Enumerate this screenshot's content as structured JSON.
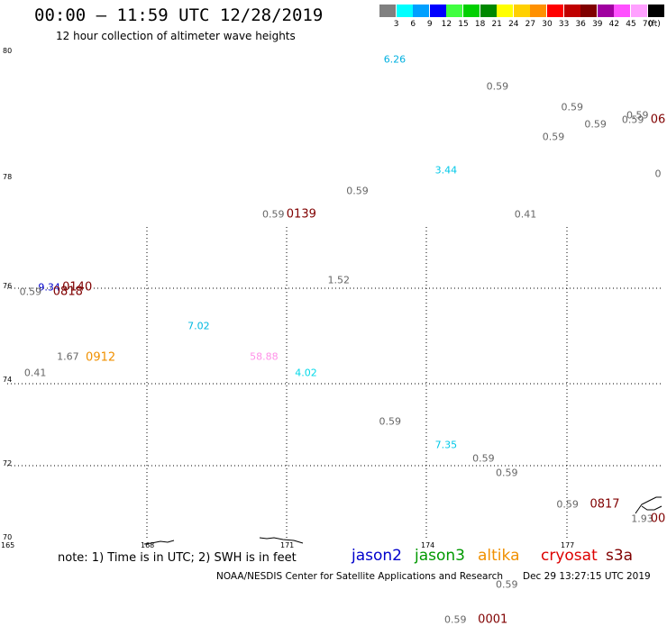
{
  "header": {
    "title": "00:00 – 11:59 UTC 12/28/2019",
    "subtitle": "12 hour collection of altimeter wave heights"
  },
  "legend": {
    "unit": "(ft)",
    "bins": [
      {
        "label": "3",
        "color": "#808080"
      },
      {
        "label": "6",
        "color": "#00ffff"
      },
      {
        "label": "9",
        "color": "#00a0ff"
      },
      {
        "label": "12",
        "color": "#0000ff"
      },
      {
        "label": "15",
        "color": "#40ff40"
      },
      {
        "label": "18",
        "color": "#00d000"
      },
      {
        "label": "21",
        "color": "#008800"
      },
      {
        "label": "24",
        "color": "#ffff00"
      },
      {
        "label": "27",
        "color": "#ffd000"
      },
      {
        "label": "30",
        "color": "#ff9000"
      },
      {
        "label": "33",
        "color": "#ff0000"
      },
      {
        "label": "36",
        "color": "#c00000"
      },
      {
        "label": "39",
        "color": "#800000"
      },
      {
        "label": "42",
        "color": "#a000a0"
      },
      {
        "label": "45",
        "color": "#ff50ff"
      },
      {
        "label": "70",
        "color": "#ffa0ff"
      },
      {
        "label": "",
        "color": "#000000"
      }
    ]
  },
  "axes": {
    "lat_labels": [
      "80",
      "78",
      "76",
      "74",
      "72",
      "70"
    ],
    "lon_labels": [
      "165",
      "168",
      "171",
      "174",
      "177"
    ]
  },
  "points": [
    {
      "text": "6.26",
      "color": "#00b0e0",
      "lon": 173.3,
      "lat": 79.87
    },
    {
      "text": "0.59",
      "color": "#666666",
      "lon": 175.5,
      "lat": 79.45
    },
    {
      "text": "0.59",
      "color": "#666666",
      "lon": 177.1,
      "lat": 79.11
    },
    {
      "text": "0.59",
      "color": "#666666",
      "lon": 178.5,
      "lat": 78.99
    },
    {
      "text": "0.59",
      "color": "#666666",
      "lon": 176.7,
      "lat": 78.65
    },
    {
      "text": "0.59",
      "color": "#666666",
      "lon": 177.6,
      "lat": 78.84
    },
    {
      "text": "0.59",
      "color": "#666666",
      "lon": 178.4,
      "lat": 78.91
    },
    {
      "text": "06",
      "color": "#800000",
      "lon": 179.8,
      "lat": 78.91,
      "big": true
    },
    {
      "text": "3.44",
      "color": "#00c8e8",
      "lon": 174.4,
      "lat": 78.12
    },
    {
      "text": "0",
      "color": "#666666",
      "lon": 180.0,
      "lat": 78.06
    },
    {
      "text": "0.59",
      "color": "#666666",
      "lon": 172.5,
      "lat": 77.75
    },
    {
      "text": "0.59",
      "color": "#666666",
      "lon": 170.7,
      "lat": 77.32
    },
    {
      "text": "0139",
      "color": "#800000",
      "lon": 171.3,
      "lat": 77.32,
      "big": true
    },
    {
      "text": "0.41",
      "color": "#666666",
      "lon": 176.1,
      "lat": 77.32
    },
    {
      "text": "1.52",
      "color": "#666666",
      "lon": 172.1,
      "lat": 76.12
    },
    {
      "text": "9.34",
      "color": "#0000cc",
      "lon": 165.9,
      "lat": 75.98
    },
    {
      "text": "0140",
      "color": "#800000",
      "lon": 166.5,
      "lat": 75.98,
      "big": true
    },
    {
      "text": "0.59",
      "color": "#666666",
      "lon": 165.5,
      "lat": 75.89
    },
    {
      "text": "0818",
      "color": "#800000",
      "lon": 166.3,
      "lat": 75.88,
      "big": true
    },
    {
      "text": "7.02",
      "color": "#00b8e0",
      "lon": 169.1,
      "lat": 75.18
    },
    {
      "text": "1.67",
      "color": "#666666",
      "lon": 166.3,
      "lat": 74.54
    },
    {
      "text": "0912",
      "color": "#f09000",
      "lon": 167.0,
      "lat": 74.53,
      "big": true
    },
    {
      "text": "58.88",
      "color": "#ff90e8",
      "lon": 170.5,
      "lat": 74.55
    },
    {
      "text": "0.41",
      "color": "#666666",
      "lon": 165.6,
      "lat": 74.21
    },
    {
      "text": "4.02",
      "color": "#00d8e8",
      "lon": 171.4,
      "lat": 74.21
    },
    {
      "text": "0.59",
      "color": "#666666",
      "lon": 173.2,
      "lat": 73.07
    },
    {
      "text": "7.35",
      "color": "#00c8e8",
      "lon": 174.4,
      "lat": 72.49
    },
    {
      "text": "0.59",
      "color": "#666666",
      "lon": 175.2,
      "lat": 72.17
    },
    {
      "text": "0.59",
      "color": "#666666",
      "lon": 175.7,
      "lat": 71.8
    },
    {
      "text": "0.59",
      "color": "#666666",
      "lon": 177.0,
      "lat": 70.95
    },
    {
      "text": "0817",
      "color": "#800000",
      "lon": 177.8,
      "lat": 70.95,
      "big": true
    },
    {
      "text": "1.93",
      "color": "#666666",
      "lon": 178.6,
      "lat": 70.54
    },
    {
      "text": "00",
      "color": "#800000",
      "lon": 179.8,
      "lat": 70.54,
      "big": true
    },
    {
      "text": "0.59",
      "color": "#666666",
      "lon": 175.7,
      "lat": 68.75
    },
    {
      "text": "0.59",
      "color": "#666666",
      "lon": 174.6,
      "lat": 67.78
    },
    {
      "text": "0001",
      "color": "#800000",
      "lon": 175.4,
      "lat": 67.78,
      "big": true
    }
  ],
  "footer": {
    "note": "note: 1) Time is in UTC; 2) SWH is in feet",
    "satellites": [
      {
        "name": "jason2",
        "color": "#0000cc"
      },
      {
        "name": "jason3",
        "color": "#009900"
      },
      {
        "name": "altika",
        "color": "#f09000"
      },
      {
        "name": "cryosat",
        "color": "#dd0000"
      },
      {
        "name": "s3a",
        "color": "#800000"
      }
    ],
    "credit": "NOAA/NESDIS Center for Satellite Applications and Research",
    "timestamp": "Dec 29 13:27:15 UTC 2019"
  }
}
